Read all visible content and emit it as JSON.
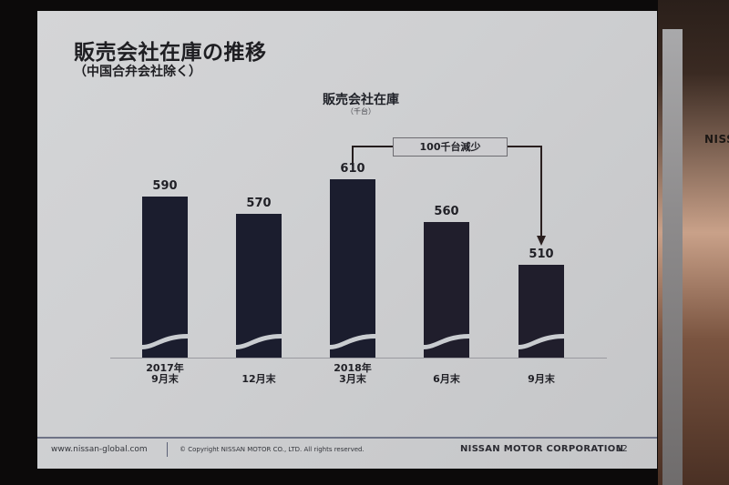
{
  "slide": {
    "title": "販売会社在庫の推移",
    "subtitle": "（中国合弁会社除く）",
    "footer": {
      "url": "www.nissan-global.com",
      "copyright": "© Copyright NISSAN MOTOR CO., LTD. All rights reserved.",
      "company": "NISSAN MOTOR CORPORATION",
      "page_number": "12"
    }
  },
  "background": {
    "pillar_sign": "NISS"
  },
  "chart_data": {
    "type": "bar",
    "title": "販売会社在庫",
    "unit": "（千台）",
    "categories": [
      "2017年\n9月末",
      "12月末",
      "2018年\n3月末",
      "6月末",
      "9月末"
    ],
    "category_lines": [
      [
        "2017年",
        "9月末"
      ],
      [
        "12月末"
      ],
      [
        "2018年",
        "3月末"
      ],
      [
        "6月末"
      ],
      [
        "9月末"
      ]
    ],
    "values": [
      590,
      570,
      610,
      560,
      510
    ],
    "value_labels": [
      "590",
      "570",
      "610",
      "560",
      "510"
    ],
    "xlabel": "",
    "ylabel": "",
    "axis_break": true,
    "grid": false,
    "legend": "none",
    "annotations": [
      {
        "text": "100千台減少",
        "from_category": "2018年 3月末",
        "to_category": "9月末",
        "arrow": "down-into-last-bar"
      }
    ],
    "colors": {
      "bar": "#1b1d2e",
      "wave": "#c9ccd0",
      "background": "#d0d1d3"
    }
  }
}
